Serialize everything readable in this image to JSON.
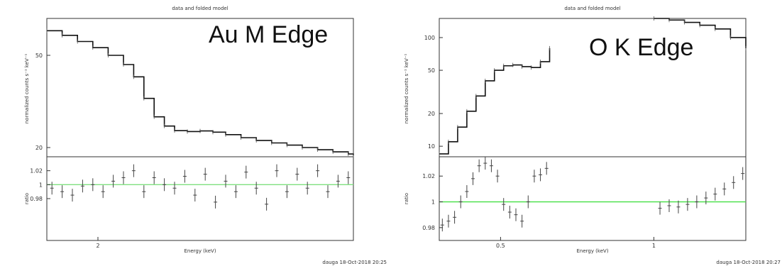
{
  "chart_data": [
    {
      "type": "line",
      "title": "data and folded model",
      "annotation": "Au M Edge",
      "xlabel": "Energy (keV)",
      "ylabel_top": "normalized counts s⁻¹ keV⁻¹",
      "ylabel_bottom": "ratio",
      "xlim": [
        1.8,
        3.0
      ],
      "x_ticks": [
        "2"
      ],
      "top_panel": {
        "ylim": [
          17,
          62
        ],
        "y_ticks": [
          "50",
          "20"
        ],
        "series": [
          {
            "x": [
              1.8,
              1.86,
              1.92,
              1.98,
              2.04,
              2.1,
              2.14,
              2.18,
              2.22,
              2.26,
              2.3,
              2.35,
              2.4,
              2.45,
              2.5,
              2.56,
              2.62,
              2.68,
              2.74,
              2.8,
              2.86,
              2.92,
              2.98,
              3.0
            ],
            "y": [
              58,
              56.5,
              54.5,
              52.5,
              50,
              47,
              43,
              36,
              30,
              27,
              25.5,
              25.2,
              25.4,
              25.0,
              24.2,
              23.2,
              22.3,
              21.5,
              20.8,
              20.0,
              19.3,
              18.6,
              17.9,
              17.5
            ]
          }
        ]
      },
      "bottom_panel": {
        "ylim": [
          0.92,
          1.04
        ],
        "y_ticks": [
          "1.02",
          "1",
          "0.98"
        ],
        "reference_line": 1,
        "reference_color": "#7fe07f",
        "points": [
          [
            1.82,
            0.995
          ],
          [
            1.86,
            0.99
          ],
          [
            1.9,
            0.985
          ],
          [
            1.94,
            0.998
          ],
          [
            1.98,
            1.0
          ],
          [
            2.02,
            0.99
          ],
          [
            2.06,
            1.005
          ],
          [
            2.1,
            1.01
          ],
          [
            2.14,
            1.02
          ],
          [
            2.18,
            0.99
          ],
          [
            2.22,
            1.01
          ],
          [
            2.26,
            1.0
          ],
          [
            2.3,
            0.995
          ],
          [
            2.34,
            1.012
          ],
          [
            2.38,
            0.985
          ],
          [
            2.42,
            1.015
          ],
          [
            2.46,
            0.975
          ],
          [
            2.5,
            1.005
          ],
          [
            2.54,
            0.99
          ],
          [
            2.58,
            1.018
          ],
          [
            2.62,
            0.995
          ],
          [
            2.66,
            0.972
          ],
          [
            2.7,
            1.02
          ],
          [
            2.74,
            0.99
          ],
          [
            2.78,
            1.015
          ],
          [
            2.82,
            0.995
          ],
          [
            2.86,
            1.02
          ],
          [
            2.9,
            0.99
          ],
          [
            2.94,
            1.005
          ],
          [
            2.98,
            1.01
          ]
        ]
      }
    },
    {
      "type": "line",
      "title": "data and folded model",
      "annotation": "O K Edge",
      "xlabel": "Energy (keV)",
      "ylabel_top": "normalized counts s⁻¹ keV⁻¹",
      "ylabel_bottom": "ratio",
      "xlim": [
        0.3,
        1.3
      ],
      "x_ticks": [
        "0.5",
        "1"
      ],
      "top_panel": {
        "ylim": [
          8,
          150
        ],
        "log_y": true,
        "y_ticks": [
          "100",
          "50",
          "20",
          "10"
        ],
        "series": [
          {
            "x": [
              0.3,
              0.33,
              0.36,
              0.39,
              0.42,
              0.45,
              0.48,
              0.51,
              0.54,
              0.57,
              0.6,
              0.63,
              0.66
            ],
            "y": [
              8.5,
              11,
              15,
              21,
              29,
              40,
              50,
              55,
              56,
              54,
              53,
              60,
              80
            ]
          },
          {
            "x": [
              1.0,
              1.05,
              1.1,
              1.15,
              1.2,
              1.25,
              1.3
            ],
            "y": [
              150,
              145,
              138,
              130,
              120,
              100,
              80
            ]
          }
        ]
      },
      "bottom_panel": {
        "ylim": [
          0.97,
          1.035
        ],
        "y_ticks": [
          "1.02",
          "1",
          "0.98"
        ],
        "reference_line": 1,
        "reference_color": "#44e044",
        "points": [
          [
            0.31,
            0.982
          ],
          [
            0.33,
            0.985
          ],
          [
            0.35,
            0.988
          ],
          [
            0.37,
            1.0
          ],
          [
            0.39,
            1.008
          ],
          [
            0.41,
            1.018
          ],
          [
            0.43,
            1.028
          ],
          [
            0.45,
            1.03
          ],
          [
            0.47,
            1.028
          ],
          [
            0.49,
            1.02
          ],
          [
            0.51,
            0.998
          ],
          [
            0.53,
            0.992
          ],
          [
            0.55,
            0.99
          ],
          [
            0.57,
            0.985
          ],
          [
            0.59,
            1.0
          ],
          [
            0.61,
            1.02
          ],
          [
            0.63,
            1.021
          ],
          [
            0.65,
            1.026
          ],
          [
            1.02,
            0.995
          ],
          [
            1.05,
            0.997
          ],
          [
            1.08,
            0.996
          ],
          [
            1.11,
            0.998
          ],
          [
            1.14,
            1.0
          ],
          [
            1.17,
            1.003
          ],
          [
            1.2,
            1.006
          ],
          [
            1.23,
            1.01
          ],
          [
            1.26,
            1.015
          ],
          [
            1.29,
            1.022
          ]
        ]
      }
    }
  ],
  "footer_left": "dauga 18-Oct-2018 20:25",
  "footer_right": "dauga 18-Oct-2018 20:27"
}
